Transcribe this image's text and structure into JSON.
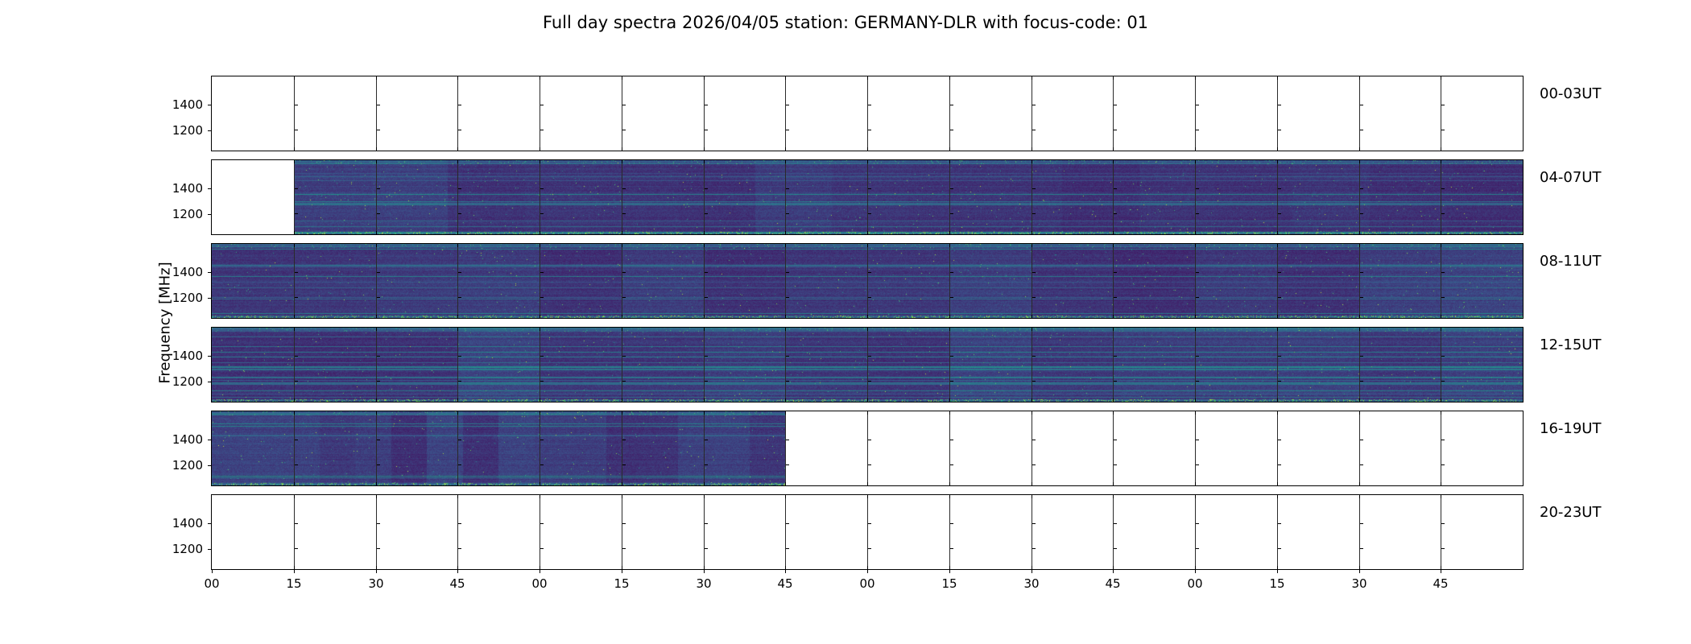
{
  "chart_data": {
    "type": "heatmap",
    "title": "Full day spectra 2026/04/05 station: GERMANY-DLR with focus-code: 01",
    "ylabel": "Frequency [MHz]",
    "y_tick_labels": [
      "1400",
      "1200"
    ],
    "ylim": [
      1100,
      1550
    ],
    "x_tick_labels": [
      "00",
      "15",
      "30",
      "45",
      "00",
      "15",
      "30",
      "45",
      "00",
      "15",
      "30",
      "45",
      "00",
      "15",
      "30",
      "45"
    ],
    "segments_per_row": 16,
    "segment_minutes": 15,
    "hours_per_row": 4,
    "grid": false,
    "legend_position": "none",
    "colormap": "viridis",
    "rows": [
      {
        "label": "00-03UT",
        "coverage": []
      },
      {
        "label": "04-07UT",
        "coverage": [
          {
            "start": 0.0625,
            "end": 1.0
          }
        ]
      },
      {
        "label": "08-11UT",
        "coverage": [
          {
            "start": 0.0,
            "end": 1.0
          }
        ]
      },
      {
        "label": "12-15UT",
        "coverage": [
          {
            "start": 0.0,
            "end": 1.0
          }
        ]
      },
      {
        "label": "16-19UT",
        "coverage": [
          {
            "start": 0.0,
            "end": 0.4375
          }
        ]
      },
      {
        "label": "20-23UT",
        "coverage": []
      }
    ],
    "colors": {
      "background": "#ffffff",
      "axis": "#000000",
      "text": "#000000",
      "spectro_base": "#3b2066",
      "spectro_streak": "#21918c",
      "spectro_bright": "#5ec962"
    }
  }
}
